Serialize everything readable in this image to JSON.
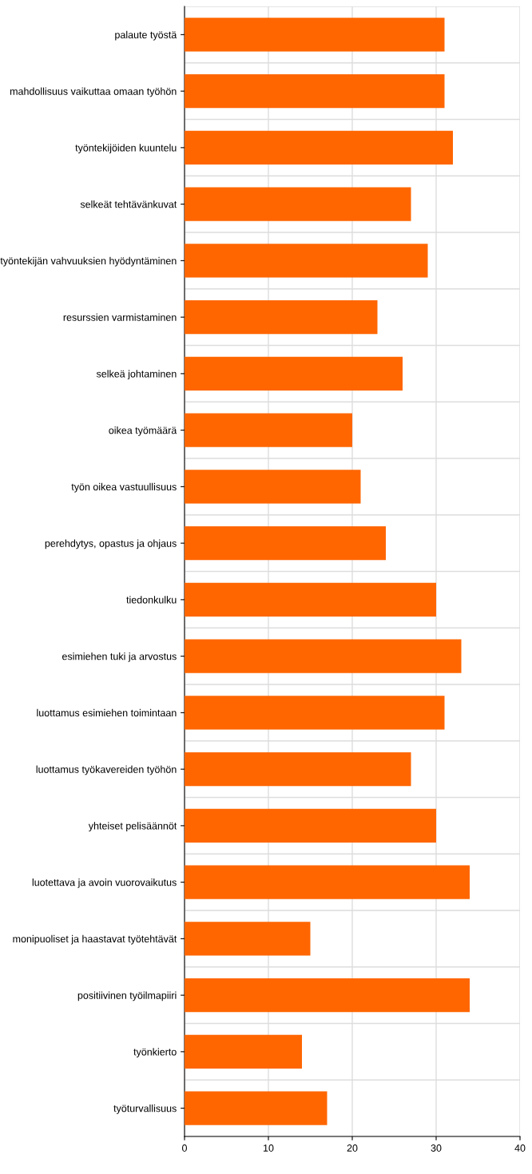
{
  "chart_data": {
    "type": "bar",
    "orientation": "horizontal",
    "categories": [
      "palaute työstä",
      "mahdollisuus vaikuttaa omaan työhön",
      "työntekijöiden kuuntelu",
      "selkeät tehtävänkuvat",
      "työntekijän vahvuuksien hyödyntäminen",
      "resurssien varmistaminen",
      "selkeä johtaminen",
      "oikea työmäärä",
      "työn oikea vastuullisuus",
      "perehdytys, opastus ja ohjaus",
      "tiedonkulku",
      "esimiehen tuki ja arvostus",
      "luottamus esimiehen toimintaan",
      "luottamus työkavereiden työhön",
      "yhteiset pelisäännöt",
      "luotettava ja avoin vuorovaikutus",
      "monipuoliset ja haastavat työtehtävät",
      "positiivinen työilmapiiri",
      "työnkierto",
      "työturvallisuus"
    ],
    "values": [
      31,
      31,
      32,
      27,
      29,
      23,
      26,
      20,
      21,
      24,
      30,
      33,
      31,
      27,
      30,
      34,
      15,
      34,
      14,
      17
    ],
    "color": "#ff6600",
    "xlim": [
      0,
      40
    ],
    "xticks": [
      0,
      10,
      20,
      30,
      40
    ],
    "grid": true
  }
}
